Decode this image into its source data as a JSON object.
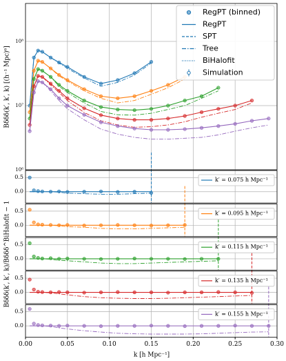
{
  "chart_data": {
    "type": "line",
    "log_y": true,
    "grid": true,
    "x_label": "k [h Mpc⁻¹]",
    "y_label": "Bδδδ(k′, k′, k) [(h⁻¹ Mpc)⁶]",
    "ratio_y_label": "Bδδδ(k′, k′, k)/Bδδδ^BiHalofit − 1",
    "xlim": [
      0,
      0.3
    ],
    "xticks": [
      {
        "value": 0,
        "label": "0.00"
      },
      {
        "value": 0.05,
        "label": "0.05"
      },
      {
        "value": 0.1,
        "label": "0.10"
      },
      {
        "value": 0.15,
        "label": "0.15"
      },
      {
        "value": 0.2,
        "label": "0.20"
      },
      {
        "value": 0.25,
        "label": "0.25"
      },
      {
        "value": 0.3,
        "label": "0.30"
      }
    ],
    "ylim": [
      1000000,
      390000000
    ],
    "yticks": [
      {
        "value": 1000000,
        "label": "10⁶"
      },
      {
        "value": 10000000,
        "label": "10⁷"
      },
      {
        "value": 100000000,
        "label": "10⁸"
      }
    ],
    "ratio_ylim": [
      -0.4,
      0.75
    ],
    "ratio_yticks": [
      {
        "value": 0,
        "label": "0.0"
      },
      {
        "value": 0.5,
        "label": "0.5"
      }
    ],
    "legend_color": "#1f77b4",
    "legend": [
      "RegPT (binned)",
      "RegPT",
      "SPT",
      "Tree",
      "BiHalofit",
      "Simulation"
    ],
    "series": [
      {
        "name": "k′ = 0.075 h Mpc⁻¹",
        "color": "#1f77b4",
        "k": [
          0.005,
          0.01,
          0.015,
          0.02,
          0.03,
          0.04,
          0.05,
          0.07,
          0.09,
          0.11,
          0.13,
          0.15
        ],
        "regpt": [
          10000000.0,
          56000000.0,
          72000000.0,
          69000000.0,
          56000000.0,
          47000000.0,
          40000000.0,
          28000000.0,
          22000000.0,
          25000000.0,
          32000000.0,
          48000000.0
        ],
        "binned": [
          10000000.0,
          56000000.0,
          72000000.0,
          69000000.0,
          56000000.0,
          47000000.0,
          40000000.0,
          28000000.0,
          22000000.0,
          25000000.0,
          32000000.0,
          48000000.0
        ],
        "tree": [
          10000000.0,
          56000000.0,
          72000000.0,
          69000000.0,
          56000000.0,
          46000000.0,
          38000000.0,
          27000000.0,
          20000000.0,
          23000000.0,
          30000000.0,
          46000000.0
        ],
        "ratio_binned": [
          0.5,
          0.05,
          0.02,
          0.01,
          0.0,
          0.01,
          -0.01,
          0.0,
          0.01,
          -0.01,
          0.0,
          -0.04
        ],
        "ratio_tree": [
          0,
          0,
          0,
          0,
          0,
          -0.02,
          -0.05,
          -0.07,
          -0.09,
          -0.09,
          -0.07,
          -0.05
        ]
      },
      {
        "name": "k′ = 0.095 h Mpc⁻¹",
        "color": "#ff7f0e",
        "k": [
          0.005,
          0.01,
          0.015,
          0.02,
          0.03,
          0.04,
          0.05,
          0.07,
          0.09,
          0.11,
          0.13,
          0.15,
          0.17,
          0.19
        ],
        "regpt": [
          7900000.0,
          35000000.0,
          50000000.0,
          48000000.0,
          38000000.0,
          30000000.0,
          25000000.0,
          18000000.0,
          14000000.0,
          13000000.0,
          14000000.0,
          17000000.0,
          21000000.0,
          28000000.0
        ],
        "binned": [
          7900000.0,
          35000000.0,
          50000000.0,
          48000000.0,
          38000000.0,
          30000000.0,
          25000000.0,
          18000000.0,
          14000000.0,
          13000000.0,
          14000000.0,
          17000000.0,
          21000000.0,
          28000000.0
        ],
        "tree": [
          7900000.0,
          35000000.0,
          50000000.0,
          48000000.0,
          38000000.0,
          29000000.0,
          24000000.0,
          17000000.0,
          13000000.0,
          11000000.0,
          12000000.0,
          15000000.0,
          19000000.0,
          26000000.0
        ],
        "ratio_binned": [
          0.55,
          0.1,
          0.03,
          0.02,
          0.01,
          0.0,
          0.01,
          -0.01,
          0.0,
          0.01,
          0.0,
          -0.01,
          0.0,
          0.01
        ],
        "ratio_tree": [
          0,
          0,
          0,
          0,
          0,
          -0.02,
          -0.05,
          -0.07,
          -0.11,
          -0.13,
          -0.13,
          -0.11,
          -0.09,
          -0.07
        ]
      },
      {
        "name": "k′ = 0.115 h Mpc⁻¹",
        "color": "#2ca02c",
        "k": [
          0.005,
          0.01,
          0.015,
          0.02,
          0.03,
          0.04,
          0.05,
          0.07,
          0.09,
          0.11,
          0.13,
          0.15,
          0.17,
          0.19,
          0.21,
          0.23
        ],
        "regpt": [
          6300000.0,
          26000000.0,
          37000000.0,
          35000000.0,
          28000000.0,
          21000000.0,
          17000000.0,
          12000000.0,
          9500000.0,
          8700000.0,
          8500000.0,
          8900000.0,
          10000000.0,
          12000000.0,
          14000000.0,
          19000000.0
        ],
        "binned": [
          6300000.0,
          26000000.0,
          37000000.0,
          35000000.0,
          28000000.0,
          21000000.0,
          17000000.0,
          12000000.0,
          9500000.0,
          8700000.0,
          8500000.0,
          8900000.0,
          10000000.0,
          12000000.0,
          14000000.0,
          19000000.0
        ],
        "tree": [
          6300000.0,
          26000000.0,
          37000000.0,
          35000000.0,
          28000000.0,
          20000000.0,
          16000000.0,
          11000000.0,
          8100000.0,
          7200000.0,
          7100000.0,
          7600000.0,
          8700000.0,
          10000000.0,
          13000000.0,
          17000000.0
        ],
        "ratio_binned": [
          0.55,
          0.08,
          0.03,
          0.01,
          0.02,
          0.0,
          0.01,
          0.0,
          -0.01,
          0.0,
          0.01,
          0.0,
          0.0,
          -0.01,
          0.0,
          0.0
        ],
        "ratio_tree": [
          0,
          0,
          0,
          0,
          -0.02,
          -0.05,
          -0.07,
          -0.11,
          -0.15,
          -0.17,
          -0.17,
          -0.15,
          -0.13,
          -0.11,
          -0.09,
          -0.07
        ]
      },
      {
        "name": "k′ = 0.135 h Mpc⁻¹",
        "color": "#d62728",
        "k": [
          0.005,
          0.01,
          0.015,
          0.02,
          0.03,
          0.04,
          0.05,
          0.07,
          0.09,
          0.11,
          0.13,
          0.15,
          0.17,
          0.19,
          0.21,
          0.23,
          0.25,
          0.27
        ],
        "regpt": [
          5000000.0,
          20000000.0,
          29000000.0,
          28000000.0,
          22000000.0,
          17000000.0,
          13000000.0,
          9100000.0,
          7100000.0,
          6300000.0,
          6000000.0,
          6000000.0,
          6300000.0,
          6900000.0,
          7900000.0,
          8900000.0,
          10000000.0,
          12000000.0
        ],
        "binned": [
          5000000.0,
          20000000.0,
          29000000.0,
          28000000.0,
          22000000.0,
          17000000.0,
          13000000.0,
          9100000.0,
          7100000.0,
          6300000.0,
          6000000.0,
          6000000.0,
          6300000.0,
          6900000.0,
          7900000.0,
          8900000.0,
          10000000.0,
          12000000.0
        ],
        "tree": [
          5000000.0,
          20000000.0,
          29000000.0,
          28000000.0,
          21000000.0,
          16000000.0,
          12000000.0,
          7800000.0,
          5800000.0,
          5000000.0,
          4600000.0,
          4700000.0,
          5000000.0,
          5600000.0,
          6600000.0,
          7600000.0,
          8700000.0,
          11000000.0
        ],
        "ratio_binned": [
          0.45,
          0.1,
          0.02,
          0.01,
          0.0,
          0.01,
          0.0,
          -0.01,
          0.0,
          0.01,
          0.0,
          0.0,
          -0.01,
          0.0,
          0.0,
          0.01,
          0.0,
          -0.02
        ],
        "ratio_tree": [
          0,
          0,
          0,
          0,
          -0.02,
          -0.05,
          -0.09,
          -0.15,
          -0.19,
          -0.21,
          -0.22,
          -0.22,
          -0.21,
          -0.19,
          -0.17,
          -0.15,
          -0.13,
          -0.11
        ]
      },
      {
        "name": "k′ = 0.155 h Mpc⁻¹",
        "color": "#9467bd",
        "k": [
          0.005,
          0.01,
          0.015,
          0.02,
          0.03,
          0.04,
          0.05,
          0.07,
          0.09,
          0.11,
          0.13,
          0.15,
          0.17,
          0.19,
          0.21,
          0.23,
          0.25,
          0.27,
          0.29
        ],
        "regpt": [
          4000000.0,
          16000000.0,
          24000000.0,
          23000000.0,
          18000000.0,
          13000000.0,
          10000000.0,
          7200000.0,
          5500000.0,
          4800000.0,
          4400000.0,
          4200000.0,
          4200000.0,
          4300000.0,
          4500000.0,
          4800000.0,
          5200000.0,
          5800000.0,
          6300000.0
        ],
        "binned": [
          4000000.0,
          16000000.0,
          24000000.0,
          23000000.0,
          18000000.0,
          13000000.0,
          10000000.0,
          7200000.0,
          5500000.0,
          4800000.0,
          4400000.0,
          4200000.0,
          4200000.0,
          4300000.0,
          4500000.0,
          4800000.0,
          5200000.0,
          5800000.0,
          6300000.0
        ],
        "tree": [
          4000000.0,
          16000000.0,
          24000000.0,
          23000000.0,
          17000000.0,
          12000000.0,
          8900000.0,
          6000000.0,
          4300000.0,
          3600000.0,
          3200000.0,
          3000000.0,
          3000000.0,
          3100000.0,
          3200000.0,
          3500000.0,
          4000000.0,
          4500000.0,
          5000000.0
        ],
        "ratio_binned": [
          0.6,
          0.08,
          0.03,
          0.02,
          0.01,
          0.0,
          0.01,
          0.0,
          -0.01,
          0.0,
          0.0,
          0.01,
          0.0,
          -0.01,
          0.0,
          0.0,
          0.01,
          0.0,
          0.0
        ],
        "ratio_tree": [
          0,
          0,
          0,
          0,
          -0.02,
          -0.07,
          -0.11,
          -0.17,
          -0.22,
          -0.26,
          -0.28,
          -0.29,
          -0.29,
          -0.29,
          -0.28,
          -0.26,
          -0.24,
          -0.22,
          -0.21
        ]
      }
    ]
  }
}
